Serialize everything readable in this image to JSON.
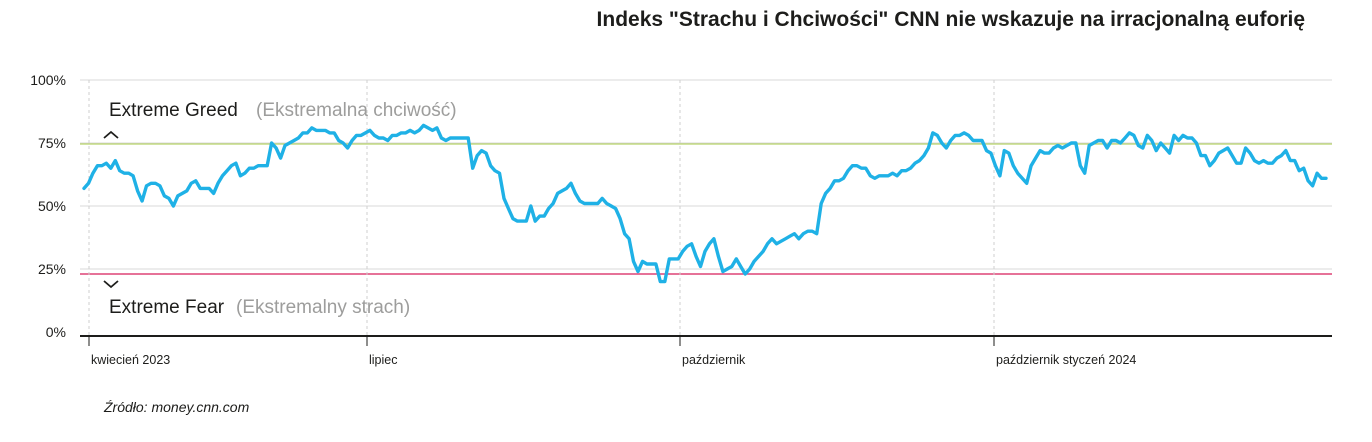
{
  "title": "Indeks \"Strachu i Chciwości\" CNN nie wskazuje na irracjonalną euforię",
  "source": "Źródło: money.cnn.com",
  "colors": {
    "line": "#1fb1e6",
    "greed_line": "#b8d36a",
    "fear_line": "#d81f5a",
    "grid": "#d9d9d9",
    "axis": "#1d1d1b"
  },
  "chart_data": {
    "type": "line",
    "title": "Indeks \"Strachu i Chciwości\" CNN nie wskazuje na irracjonalną euforię",
    "xlabel": "",
    "ylabel": "",
    "ylim": [
      0,
      100
    ],
    "y_tick_labels": [
      "0%",
      "25%",
      "50%",
      "75%",
      "100%"
    ],
    "x_tick_labels": [
      "kwiecień 2023",
      "lipiec",
      "październik",
      "październik styczeń 2024"
    ],
    "thresholds": [
      {
        "value": 75,
        "label": "Extreme Greed",
        "sublabel": "(Ekstremalna chciwość)",
        "color": "#b8d36a"
      },
      {
        "value": 25,
        "label": "Extreme Fear",
        "sublabel": "(Ekstremalny strach)",
        "color": "#d81f5a"
      }
    ],
    "grid": true,
    "series": [
      {
        "values": [
          57,
          59,
          63,
          66,
          66,
          67,
          65,
          68,
          64,
          63,
          63,
          62,
          56,
          52,
          58,
          59,
          59,
          58,
          54,
          53,
          50,
          54,
          55,
          56,
          59,
          60,
          57,
          57,
          57,
          55,
          59,
          62,
          64,
          66,
          67,
          62,
          63,
          65,
          65,
          66,
          66,
          66,
          75,
          73,
          69,
          74,
          75,
          76,
          77,
          79,
          79,
          81,
          80,
          80,
          80,
          79,
          79,
          76,
          75,
          73,
          76,
          78,
          78,
          79,
          80,
          78,
          77,
          77,
          76,
          78,
          78,
          79,
          79,
          80,
          79,
          80,
          82,
          81,
          80,
          81,
          77,
          76,
          77,
          77,
          77,
          77,
          77,
          65,
          70,
          72,
          71,
          66,
          64,
          63,
          53,
          49,
          45,
          44,
          44,
          44,
          50,
          44,
          46,
          46,
          49,
          51,
          55,
          56,
          57,
          59,
          55,
          52,
          51,
          51,
          51,
          51,
          53,
          51,
          50,
          49,
          45,
          39,
          37,
          28,
          24,
          28,
          27,
          27,
          27,
          20,
          20,
          29,
          29,
          29,
          32,
          34,
          35,
          30,
          26,
          32,
          35,
          37,
          30,
          24,
          25,
          26,
          29,
          26,
          23,
          25,
          28,
          30,
          32,
          35,
          37,
          35,
          36,
          37,
          38,
          39,
          37,
          39,
          40,
          40,
          39,
          51,
          55,
          57,
          60,
          60,
          61,
          64,
          66,
          66,
          65,
          65,
          62,
          61,
          62,
          62,
          62,
          63,
          62,
          64,
          64,
          65,
          67,
          68,
          70,
          73,
          79,
          78,
          75,
          73,
          76,
          78,
          78,
          79,
          78,
          76,
          76,
          76,
          72,
          71,
          66,
          62,
          72,
          71,
          66,
          63,
          61,
          59,
          66,
          69,
          72,
          71,
          71,
          73,
          74,
          73,
          74,
          75,
          75,
          66,
          63,
          74,
          75,
          76,
          76,
          73,
          76,
          76,
          75,
          77,
          79,
          78,
          74,
          73,
          78,
          76,
          72,
          75,
          73,
          71,
          78,
          76,
          78,
          77,
          77,
          75,
          70,
          70,
          66,
          68,
          71,
          72,
          73,
          70,
          67,
          67,
          73,
          71,
          68,
          67,
          68,
          67,
          67,
          69,
          70,
          72,
          68,
          68,
          64,
          65,
          60,
          58,
          63,
          61,
          61
        ],
        "x_start_index": 0,
        "note_units": "percent of 0-100 scale"
      }
    ]
  },
  "zones": {
    "greed_label": "Extreme Greed",
    "greed_sub": "(Ekstremalna chciwość)",
    "fear_label": "Extreme Fear",
    "fear_sub": "(Ekstremalny strach)"
  }
}
